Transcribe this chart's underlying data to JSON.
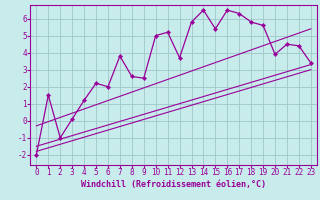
{
  "background_color": "#c8ecec",
  "grid_color": "#a0c8c8",
  "line_color": "#990099",
  "marker_color": "#990099",
  "xlabel": "Windchill (Refroidissement éolien,°C)",
  "xlabel_fontsize": 6.0,
  "tick_fontsize": 5.5,
  "xlim": [
    -0.5,
    23.5
  ],
  "ylim": [
    -2.6,
    6.8
  ],
  "yticks": [
    -2,
    -1,
    0,
    1,
    2,
    3,
    4,
    5,
    6
  ],
  "xticks": [
    0,
    1,
    2,
    3,
    4,
    5,
    6,
    7,
    8,
    9,
    10,
    11,
    12,
    13,
    14,
    15,
    16,
    17,
    18,
    19,
    20,
    21,
    22,
    23
  ],
  "data_line": {
    "x": [
      0,
      1,
      2,
      3,
      4,
      5,
      6,
      7,
      8,
      9,
      10,
      11,
      12,
      13,
      14,
      15,
      16,
      17,
      18,
      19,
      20,
      21,
      22,
      23
    ],
    "y": [
      -2.0,
      1.5,
      -1.0,
      0.1,
      1.2,
      2.2,
      2.0,
      3.8,
      2.6,
      2.5,
      5.0,
      5.2,
      3.7,
      5.8,
      6.5,
      5.4,
      6.5,
      6.3,
      5.8,
      5.6,
      3.9,
      4.5,
      4.4,
      3.4
    ]
  },
  "line_upper": {
    "x": [
      0,
      23
    ],
    "y": [
      -0.3,
      5.4
    ]
  },
  "line_lower": {
    "x": [
      0,
      23
    ],
    "y": [
      -1.5,
      3.3
    ]
  },
  "line_middle": {
    "x": [
      0,
      23
    ],
    "y": [
      -1.8,
      3.0
    ]
  }
}
